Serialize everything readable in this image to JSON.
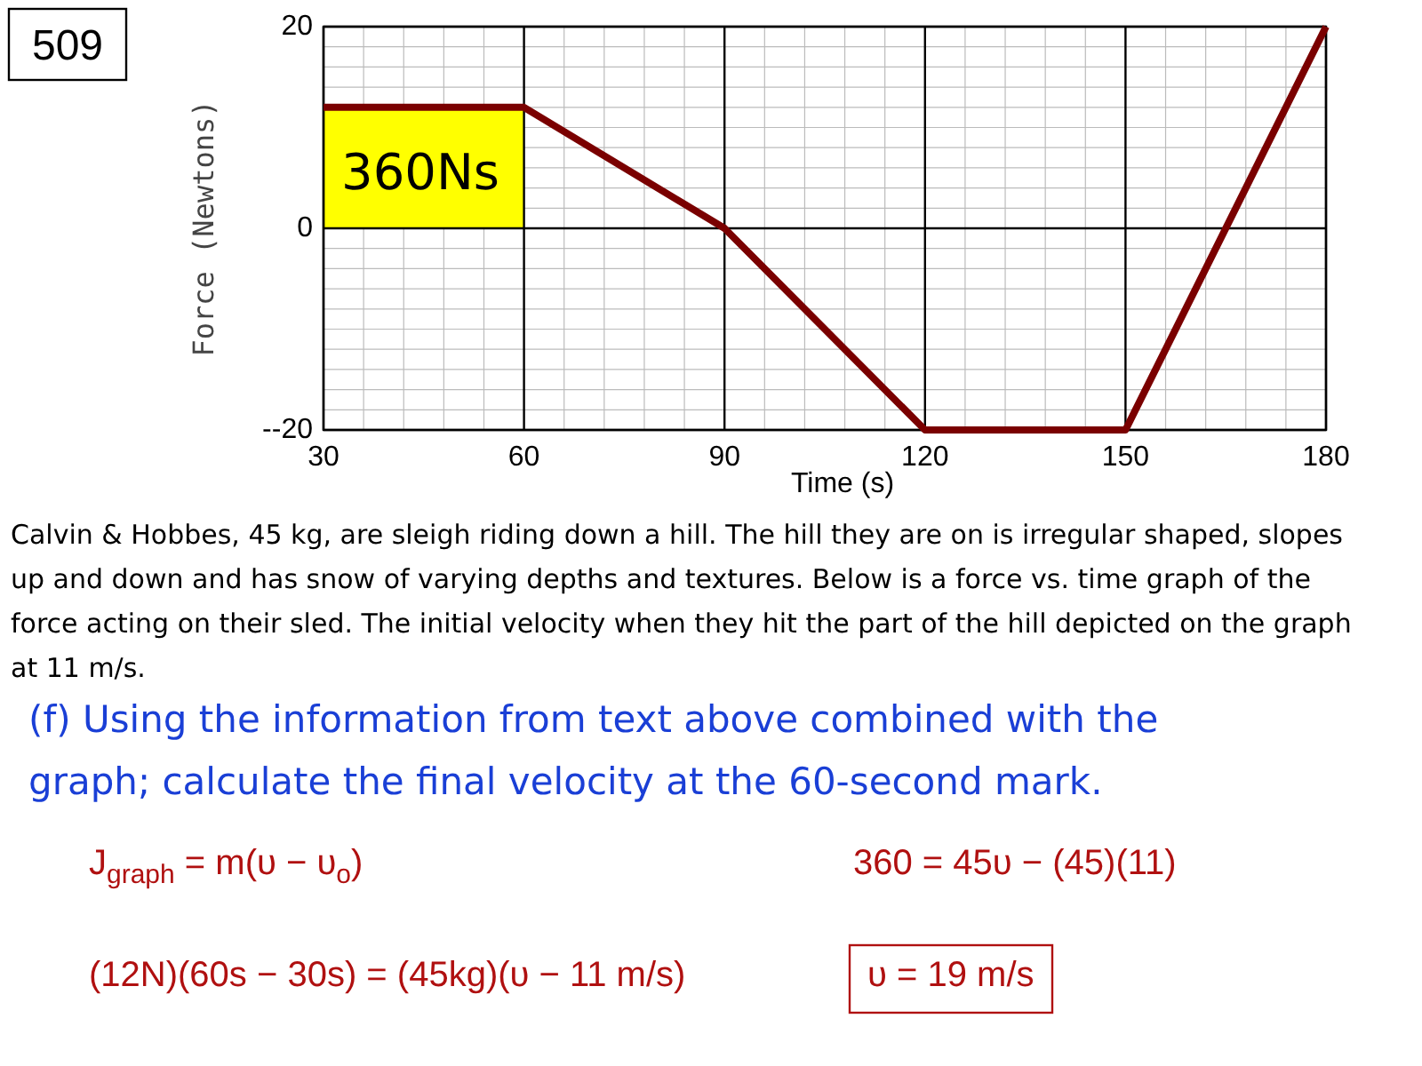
{
  "chart_data": {
    "type": "line",
    "xlabel": "Time (s)",
    "ylabel": "Force (Newtons)",
    "xlim": [
      30,
      180
    ],
    "xticks": [
      30,
      60,
      90,
      120,
      150,
      180
    ],
    "ylim": [
      -20,
      20
    ],
    "yticks": [
      20,
      0,
      {
        "value": -20,
        "label": "--20"
      }
    ],
    "grid": true,
    "marker": "none",
    "line_style": "solid",
    "series": [
      {
        "type": "area",
        "color": "#ffff00",
        "x": [
          30,
          60
        ],
        "values": [
          12,
          12
        ]
      },
      {
        "color": "#7a0000",
        "x": [
          30,
          60,
          90,
          120,
          150,
          180
        ],
        "values": [
          12,
          12,
          0,
          -20,
          -20,
          20
        ]
      }
    ],
    "annotations": [
      "360Ns",
      "509",
      "Calvin & Hobbes, 45 kg, are sleigh riding down a hill. The hill they are on is irregular shaped, slopes up and down and has snow of varying depths and textures. Below is a force vs. time graph of the force acting on their sled. The initial velocity when they hit the part of the hill depicted on the graph at 11 m/s.",
      "(f) Using the information from text above combined with the graph; calculate the final velocity at the 60-second mark.",
      "J$_{graph}$ = m(υ − υ$_{o}$)",
      "360 = 45υ − (45)(11)",
      "(12N)(60s − 30s) = (45kg)(υ − 11 m/s)",
      "υ = 19 m/s"
    ]
  }
}
